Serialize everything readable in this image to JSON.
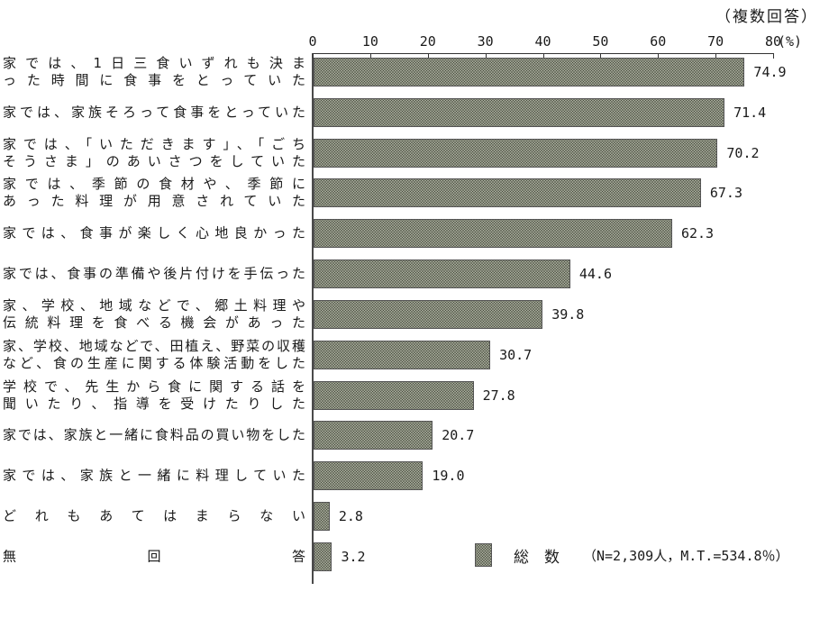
{
  "note": "（複数回答）",
  "axis": {
    "ticks": [
      "0",
      "10",
      "20",
      "30",
      "40",
      "50",
      "60",
      "70",
      "80"
    ],
    "unit_label": "(%)",
    "max": 80
  },
  "legend": {
    "name": "総　数",
    "detail": "（N=2,309人，M.T.=534.8％）"
  },
  "chart_data": {
    "type": "bar",
    "orientation": "horizontal",
    "title": "（複数回答）",
    "xlabel": "(%)",
    "xlim": [
      0,
      80
    ],
    "grid": false,
    "legend_position": "bottom-right",
    "legend_entries": [
      "総数 （N=2,309人，M.T.=534.8％）"
    ],
    "categories": [
      "家では、1日三食いずれも決まった時間に食事をとっていた",
      "家では、家族そろって食事をとっていた",
      "家では、「いただきます」、「ごちそうさま」のあいさつをしていた",
      "家では、季節の食材や、季節にあった料理が用意されていた",
      "家では、食事が楽しく心地良かった",
      "家では、食事の準備や後片付けを手伝った",
      "家、学校、地域などで、郷土料理や伝統料理を食べる機会があった",
      "家、学校、地域などで、田植え、野菜の収穫など、食の生産に関する体験活動をした",
      "学校で、先生から食に関する話を聞いたり、指導を受けたりした",
      "家では、家族と一緒に食料品の買い物をした",
      "家では、家族と一緒に料理していた",
      "どれもあてはまらない",
      "無回答"
    ],
    "values": [
      74.9,
      71.4,
      70.2,
      67.3,
      62.3,
      44.6,
      39.8,
      30.7,
      27.8,
      20.7,
      19.0,
      2.8,
      3.2
    ]
  },
  "rows": [
    {
      "lines": [
        "家では、1日三食いずれも決ま",
        "った時間に食事をとっていた"
      ],
      "value": "74.9"
    },
    {
      "lines": [
        "家では、家族そろって食事をとっていた"
      ],
      "value": "71.4"
    },
    {
      "lines": [
        "家では、「いただきます」、「ごち",
        "そうさま」のあいさつをしていた"
      ],
      "value": "70.2"
    },
    {
      "lines": [
        "家では、季節の食材や、季節に",
        "あった料理が用意されていた"
      ],
      "value": "67.3"
    },
    {
      "lines": [
        "家では、食事が楽しく心地良かった"
      ],
      "value": "62.3"
    },
    {
      "lines": [
        "家では、食事の準備や後片付けを手伝った"
      ],
      "value": "44.6"
    },
    {
      "lines": [
        "家、学校、地域などで、郷土料理や",
        "伝統料理を食べる機会があった"
      ],
      "value": "39.8"
    },
    {
      "lines": [
        "家、学校、地域などで、田植え、野菜の収穫",
        "など、食の生産に関する体験活動をした"
      ],
      "value": "30.7"
    },
    {
      "lines": [
        "学校で、先生から食に関する話を",
        "聞いたり、指導を受けたりした"
      ],
      "value": "27.8"
    },
    {
      "lines": [
        "家では、家族と一緒に食料品の買い物をした"
      ],
      "value": "20.7"
    },
    {
      "lines": [
        "家では、家族と一緒に料理していた"
      ],
      "value": "19.0"
    },
    {
      "lines": [
        "どれもあてはまらない"
      ],
      "value": "2.8"
    },
    {
      "lines": [
        "無回答"
      ],
      "value": "3.2"
    }
  ]
}
